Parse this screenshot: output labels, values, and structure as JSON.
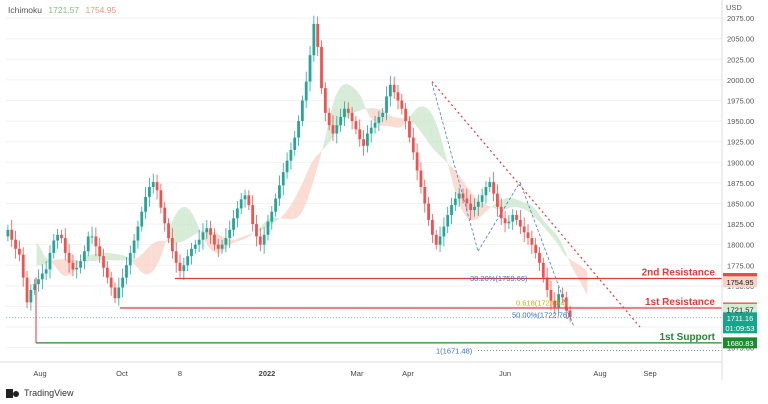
{
  "header": {
    "indicator": "Ichimoku",
    "value_a": "1721.57",
    "value_b": "1754.95",
    "color_a": "#7ac47a",
    "color_b": "#e89a7a"
  },
  "footer": {
    "brand": "TradingView"
  },
  "chart_data": {
    "type": "candlestick",
    "title": "",
    "currency_label": "USD",
    "y_range": [
      1660,
      2080
    ],
    "y_ticks": [
      1675,
      1700,
      1725,
      1750,
      1775,
      1800,
      1825,
      1850,
      1875,
      1900,
      1925,
      1950,
      1975,
      2000,
      2025,
      2050,
      2075
    ],
    "x_ticks": [
      "Aug",
      "Oct",
      "8",
      "2022",
      "Mar",
      "Apr",
      "Jun",
      "Aug",
      "Sep"
    ],
    "price_path": [
      1810,
      1818,
      1806,
      1795,
      1788,
      1760,
      1730,
      1745,
      1752,
      1758,
      1765,
      1770,
      1790,
      1805,
      1812,
      1808,
      1790,
      1778,
      1770,
      1772,
      1780,
      1792,
      1810,
      1810,
      1798,
      1786,
      1772,
      1760,
      1748,
      1735,
      1748,
      1760,
      1775,
      1790,
      1805,
      1822,
      1840,
      1858,
      1870,
      1876,
      1866,
      1845,
      1826,
      1808,
      1792,
      1778,
      1768,
      1775,
      1786,
      1795,
      1800,
      1806,
      1815,
      1820,
      1812,
      1800,
      1795,
      1800,
      1808,
      1818,
      1832,
      1844,
      1855,
      1860,
      1848,
      1825,
      1810,
      1800,
      1812,
      1828,
      1840,
      1856,
      1872,
      1888,
      1902,
      1915,
      1930,
      1950,
      1975,
      1998,
      2030,
      2068,
      2040,
      1990,
      1960,
      1945,
      1935,
      1945,
      1955,
      1965,
      1960,
      1950,
      1940,
      1928,
      1920,
      1935,
      1942,
      1948,
      1955,
      1960,
      1980,
      1994,
      1985,
      1975,
      1965,
      1950,
      1930,
      1912,
      1890,
      1870,
      1850,
      1830,
      1812,
      1800,
      1810,
      1822,
      1836,
      1848,
      1856,
      1862,
      1856,
      1850,
      1842,
      1846,
      1852,
      1860,
      1870,
      1876,
      1862,
      1846,
      1832,
      1826,
      1828,
      1836,
      1830,
      1822,
      1815,
      1808,
      1800,
      1790,
      1778,
      1760,
      1745,
      1732,
      1724,
      1740,
      1736,
      1720,
      1712
    ],
    "levels": [
      {
        "name": "2nd Resistance",
        "value": 1758.89,
        "label": "1758.89",
        "color": "#e23a3a"
      },
      {
        "name": "1st Resistance",
        "value": 1723.09,
        "label": "1723.09",
        "color": "#e23a3a"
      },
      {
        "name": "1st Support",
        "value": 1680.83,
        "label": "1680.83",
        "color": "#1e8a2e"
      }
    ],
    "fib_labels": [
      {
        "text": "38.20%(1759.66)",
        "value": 1759.66,
        "color": "#3b6fc9"
      },
      {
        "text": "0.618(1723.54)",
        "value": 1723.54,
        "color": "#d9a21b"
      },
      {
        "text": "50.00%(1722.76)",
        "value": 1722.76,
        "color": "#3b6fc9"
      },
      {
        "text": "1(1671.48)",
        "value": 1671.48,
        "color": "#3b6fc9"
      }
    ],
    "price_tags": [
      {
        "label": "1754.95",
        "value": 1754.95,
        "bg": "#f4d3c8",
        "fg": "#222222"
      },
      {
        "label": "1721.57",
        "value": 1721.57,
        "bg": "#d3ecd3",
        "fg": "#222222"
      },
      {
        "label": "1711.16",
        "value": 1711.16,
        "bg": "#16a58a",
        "fg": "#ffffff"
      },
      {
        "label": "01:09:53",
        "value": 1700.0,
        "bg": "#16a58a",
        "fg": "#ffffff"
      }
    ]
  }
}
